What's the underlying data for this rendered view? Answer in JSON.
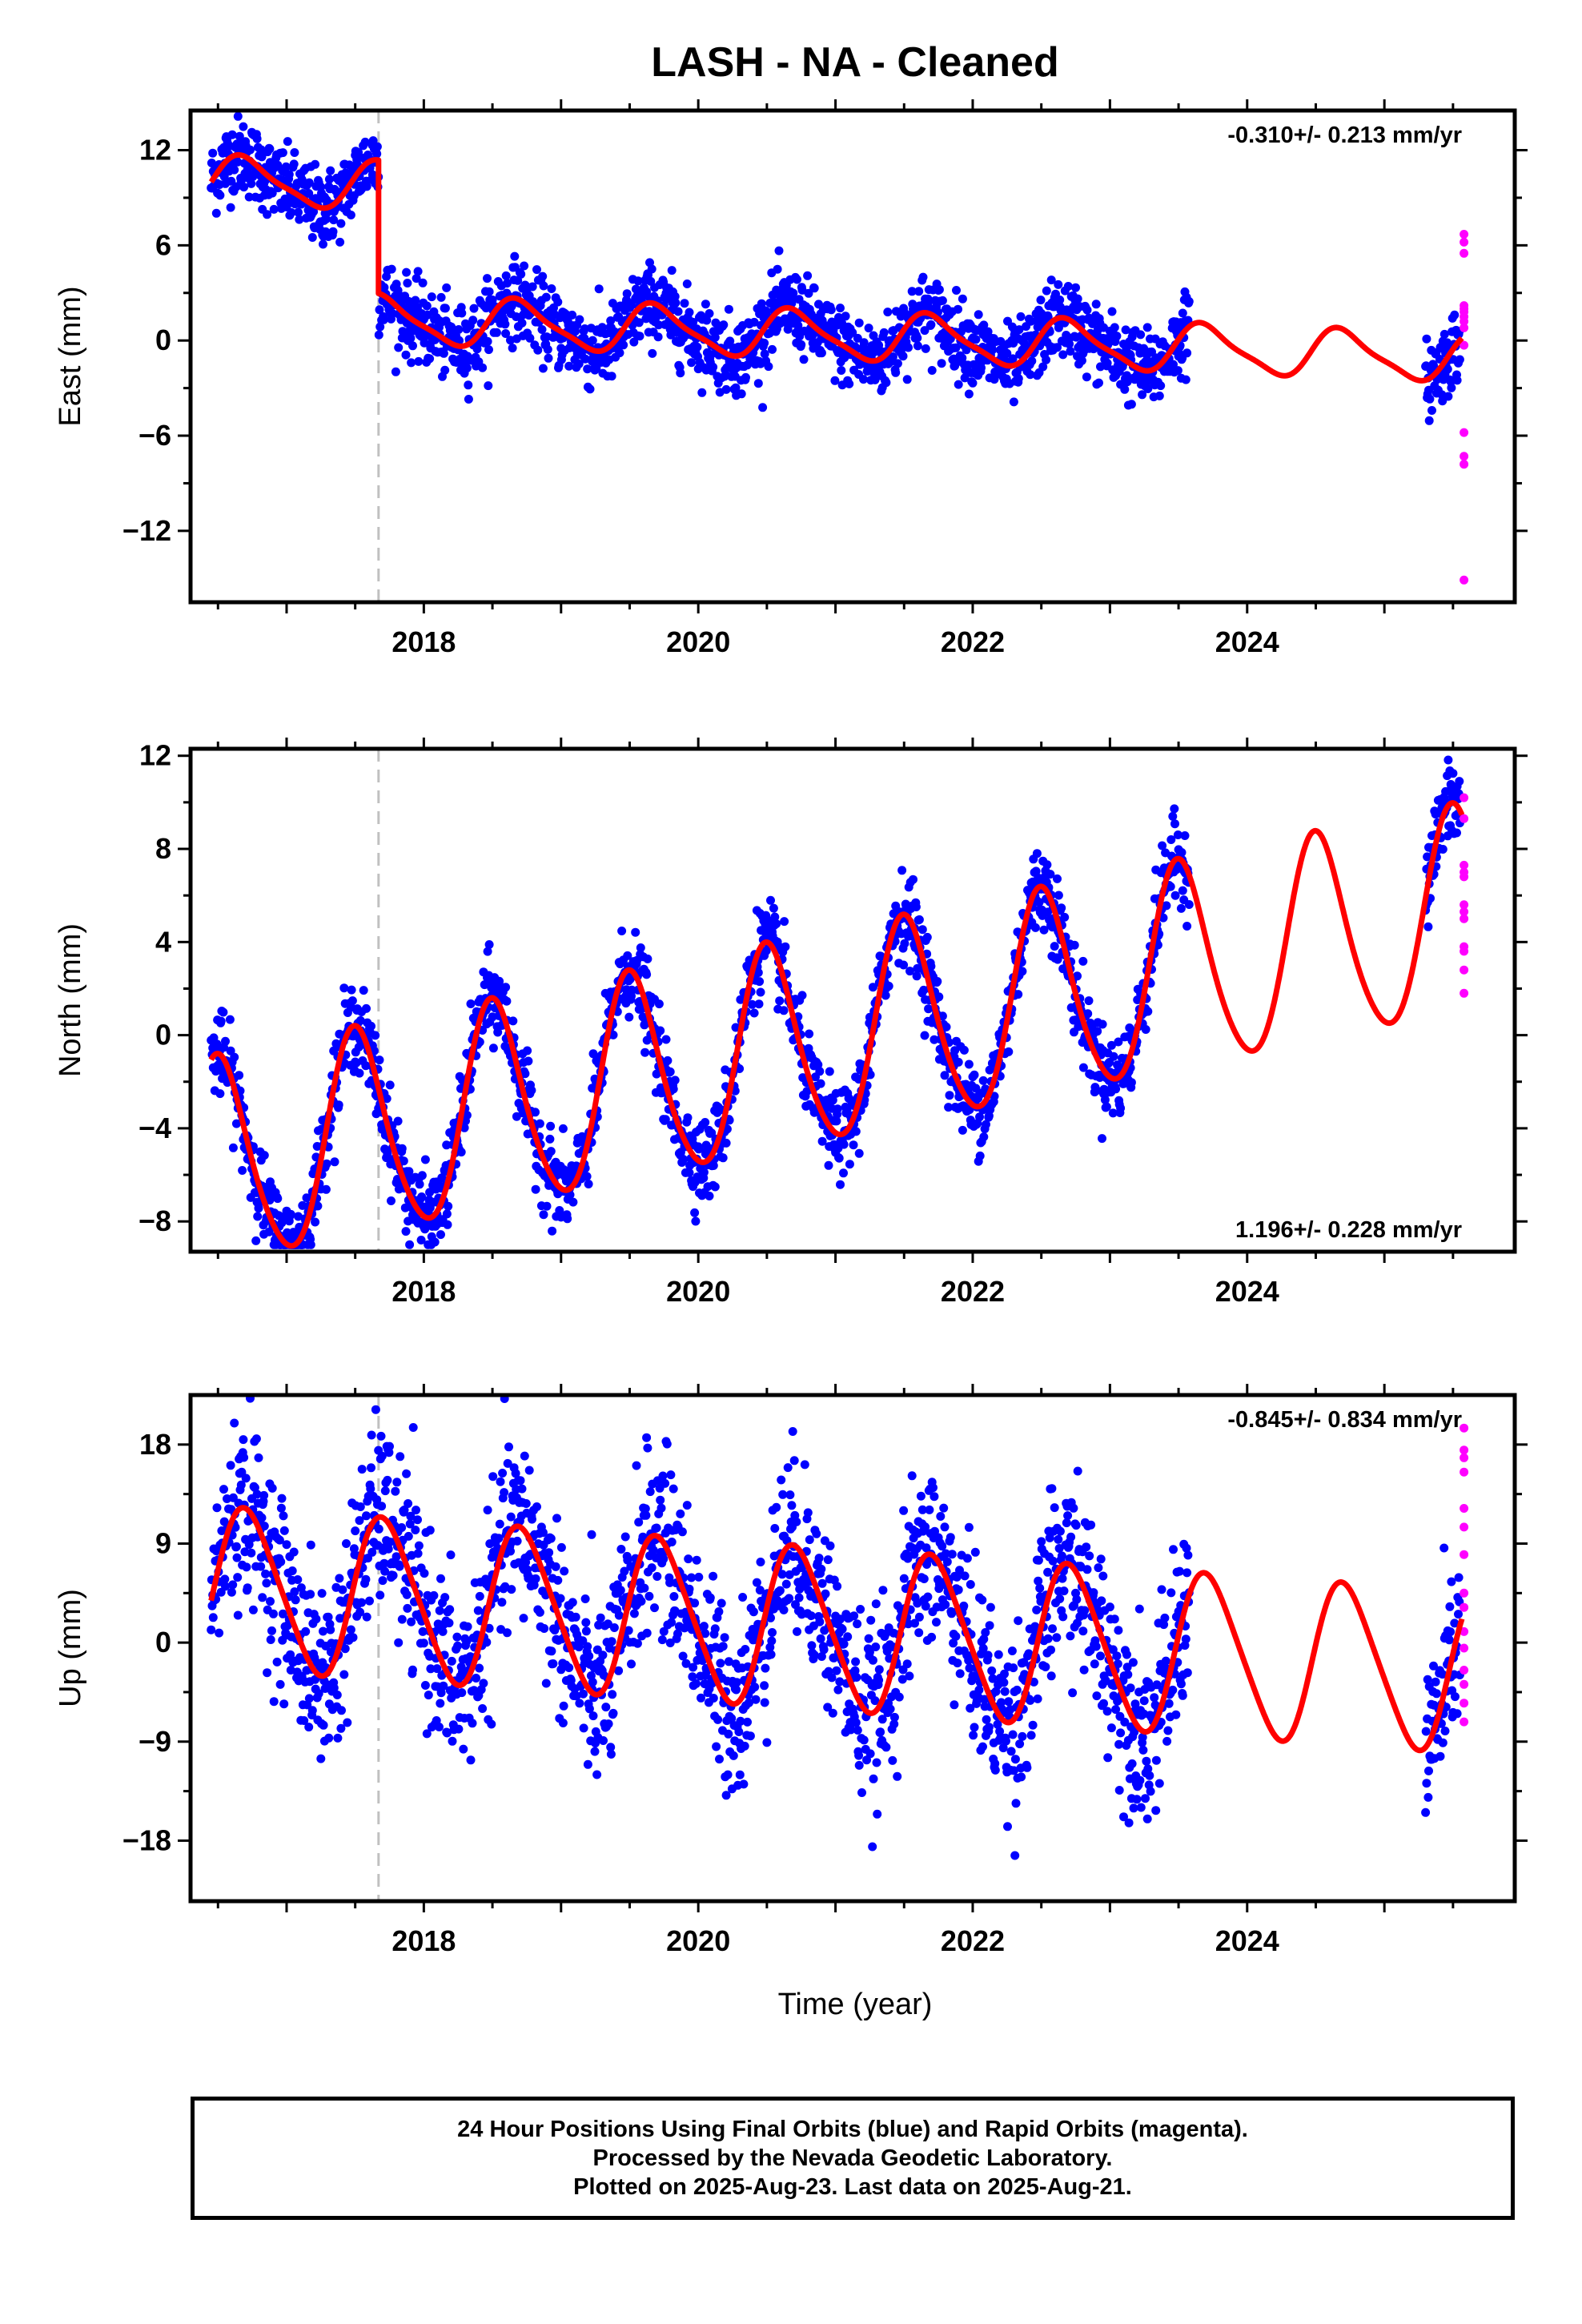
{
  "title": "LASH  - NA - Cleaned",
  "x_label": "Time (year)",
  "footer": {
    "line1": "24 Hour Positions Using Final Orbits (blue) and Rapid Orbits (magenta).",
    "line2": "Processed by the Nevada Geodetic Laboratory.",
    "line3": "Plotted on 2025-Aug-23. Last data on 2025-Aug-21."
  },
  "colors": {
    "final": "#0000ff",
    "rapid": "#ff00ff",
    "model": "#ff0000",
    "equipment_change": "#c0c0c0"
  },
  "chart_data": [
    {
      "type": "scatter",
      "name": "east",
      "ylabel": "East (mm)",
      "rate": "-0.310+/- 0.213 mm/yr",
      "rate_position": "top-right",
      "xlim": [
        2016.3,
        2025.95
      ],
      "ylim": [
        -16.5,
        14.5
      ],
      "yticks": [
        12,
        6,
        0,
        -6,
        -12
      ],
      "xticks": [
        2018,
        2020,
        2022,
        2024
      ],
      "equipment_change": 2017.67,
      "data_span": [
        2016.45,
        2023.58
      ],
      "recent_span": [
        2025.3,
        2025.55
      ],
      "model": {
        "offset_before": 9.0,
        "offset_after": 0.6,
        "trend": -0.31,
        "t0": 2020.0,
        "annual_amp": 1.45,
        "annual_peak": 2018.7,
        "semiannual_amp": 0.35,
        "semiannual_peak": 2018.6,
        "scatter_sd": 1.2
      },
      "rapid_points": [
        6.7,
        6.2,
        5.5,
        2.2,
        2.0,
        1.8,
        1.5,
        1.2,
        0.8,
        -0.3,
        -5.8,
        -7.3,
        -7.8,
        -15.1
      ]
    },
    {
      "type": "scatter",
      "name": "north",
      "ylabel": "North (mm)",
      "rate": "1.196+/- 0.228 mm/yr",
      "rate_position": "bottom-right",
      "xlim": [
        2016.3,
        2025.95
      ],
      "ylim": [
        -9.3,
        12.3
      ],
      "yticks": [
        12,
        8,
        4,
        0,
        -4,
        -8
      ],
      "xticks": [
        2018,
        2020,
        2022,
        2024
      ],
      "equipment_change": 2017.67,
      "data_span": [
        2016.45,
        2023.58
      ],
      "recent_span": [
        2025.3,
        2025.55
      ],
      "model": {
        "offset_before": -1.4,
        "offset_after": -1.4,
        "trend": 1.196,
        "t0": 2020.0,
        "annual_amp": 4.4,
        "annual_peak": 2019.51,
        "semiannual_amp": 0.5,
        "semiannual_peak": 2019.45,
        "scatter_sd": 0.9
      },
      "rapid_points": [
        10.2,
        9.3,
        7.3,
        7.0,
        6.8,
        5.6,
        5.3,
        5.0,
        3.8,
        3.6,
        2.8,
        1.8
      ]
    },
    {
      "type": "scatter",
      "name": "up",
      "ylabel": "Up (mm)",
      "rate": "-0.845+/- 0.834 mm/yr",
      "rate_position": "top-right",
      "xlim": [
        2016.3,
        2025.95
      ],
      "ylim": [
        -23.5,
        22.5
      ],
      "yticks": [
        18,
        9,
        0,
        -9,
        -18
      ],
      "xticks": [
        2018,
        2020,
        2022,
        2024
      ],
      "equipment_change": 2017.67,
      "data_span": [
        2016.45,
        2023.58
      ],
      "recent_span": [
        2025.3,
        2025.55
      ],
      "model": {
        "offset_before": 2.0,
        "offset_after": 2.0,
        "trend": -0.845,
        "t0": 2020.0,
        "annual_amp": 7.2,
        "annual_peak": 2018.72,
        "semiannual_amp": 0.9,
        "semiannual_peak": 2018.6,
        "scatter_sd": 4.0
      },
      "rapid_points": [
        19.5,
        17.5,
        16.8,
        15.5,
        12.2,
        10.5,
        8.0,
        4.5,
        3.2,
        1.0,
        -0.5,
        -2.5,
        -3.8,
        -5.5,
        -7.2
      ]
    }
  ]
}
